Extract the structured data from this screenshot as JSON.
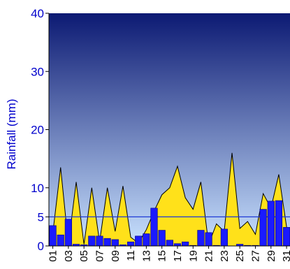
{
  "chart_data": {
    "type": "bar",
    "ylabel": "Rainfall (mm)",
    "ylim": [
      0,
      40
    ],
    "yticks": [
      0,
      5,
      10,
      20,
      30,
      40
    ],
    "y_ticks_labels": [
      "0",
      "5",
      "10",
      "20",
      "30",
      "40"
    ],
    "reference_line": 5,
    "grid": false,
    "x_tick_labels": [
      "01",
      "03",
      "05",
      "07",
      "09",
      "11",
      "13",
      "15",
      "17",
      "19",
      "21",
      "23",
      "25",
      "27",
      "29",
      "31"
    ],
    "days": [
      1,
      2,
      3,
      4,
      5,
      6,
      7,
      8,
      9,
      10,
      11,
      12,
      13,
      14,
      15,
      16,
      17,
      18,
      19,
      20,
      21,
      22,
      23,
      24,
      25,
      26,
      27,
      28,
      29,
      30,
      31
    ],
    "series": [
      {
        "kind": "bar",
        "values": [
          3.5,
          1.9,
          4.6,
          0.3,
          0.2,
          1.7,
          1.7,
          1.3,
          1.1,
          0.2,
          0.7,
          1.7,
          2.1,
          6.5,
          2.7,
          1.0,
          0.4,
          0.7,
          0.1,
          2.7,
          2.3,
          0.1,
          2.9,
          0.0,
          0.3,
          0.1,
          0.1,
          6.3,
          7.7,
          7.8,
          3.2
        ]
      },
      {
        "kind": "area",
        "values": [
          2.2,
          13.5,
          0.3,
          11.0,
          0.3,
          10.0,
          0.7,
          10.0,
          2.5,
          10.3,
          1.5,
          0.5,
          2.8,
          6.0,
          8.8,
          10.0,
          13.7,
          8.3,
          6.3,
          11.0,
          0.3,
          3.8,
          2.5,
          16.0,
          3.0,
          4.2,
          2.0,
          9.0,
          6.5,
          12.3,
          3.3
        ]
      }
    ],
    "colors": {
      "bar_fill": "#1a1aff",
      "bar_stroke": "#000080",
      "area_fill": "#ffe11a",
      "bg_top": "#0c1a73",
      "bg_bottom": "#c9e2ff",
      "axis_text": "#0000cc",
      "reference_line": "#1f3ad6"
    }
  }
}
